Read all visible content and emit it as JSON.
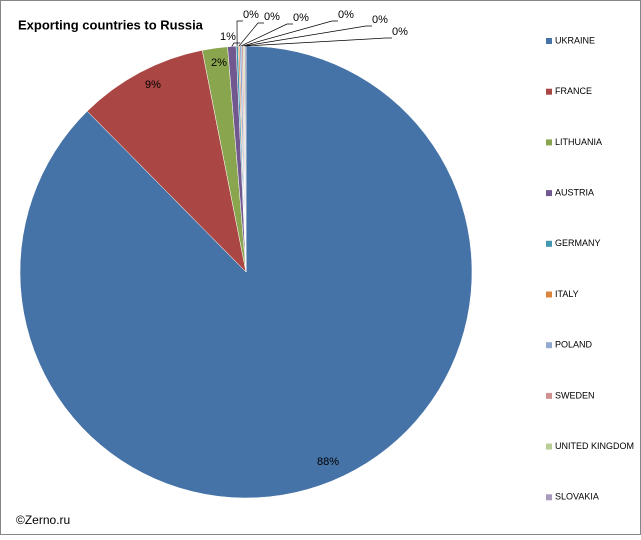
{
  "chart_data": {
    "type": "pie",
    "title": "Exporting countries to Russia",
    "categories": [
      "UKRAINE",
      "FRANCE",
      "LITHUANIA",
      "AUSTRIA",
      "GERMANY",
      "ITALY",
      "POLAND",
      "SWEDEN",
      "UNITED KINGDOM",
      "SLOVAKIA"
    ],
    "values": [
      87.6,
      9.3,
      1.8,
      0.6,
      0.15,
      0.1,
      0.15,
      0.1,
      0.1,
      0.1
    ],
    "value_labels": [
      "88%",
      "9%",
      "2%",
      "1%",
      "0%",
      "0%",
      "0%",
      "0%",
      "0%",
      "0%"
    ],
    "colors": [
      "#4572a7",
      "#aa4643",
      "#89a54e",
      "#71588f",
      "#4198af",
      "#db843d",
      "#93a9cf",
      "#d19392",
      "#b9cd96",
      "#a99bbd"
    ],
    "legend": "right"
  },
  "credit": "©Zerno.ru"
}
